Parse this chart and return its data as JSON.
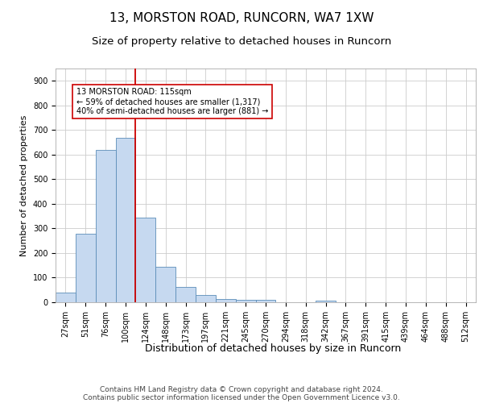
{
  "title1": "13, MORSTON ROAD, RUNCORN, WA7 1XW",
  "title2": "Size of property relative to detached houses in Runcorn",
  "xlabel": "Distribution of detached houses by size in Runcorn",
  "ylabel": "Number of detached properties",
  "categories": [
    "27sqm",
    "51sqm",
    "76sqm",
    "100sqm",
    "124sqm",
    "148sqm",
    "173sqm",
    "197sqm",
    "221sqm",
    "245sqm",
    "270sqm",
    "294sqm",
    "318sqm",
    "342sqm",
    "367sqm",
    "391sqm",
    "415sqm",
    "439sqm",
    "464sqm",
    "488sqm",
    "512sqm"
  ],
  "values": [
    40,
    278,
    620,
    667,
    345,
    145,
    63,
    28,
    13,
    10,
    10,
    0,
    0,
    8,
    0,
    0,
    0,
    0,
    0,
    0,
    0
  ],
  "bar_color": "#c6d9f0",
  "bar_edge_color": "#5b8db8",
  "vline_index": 3,
  "vline_color": "#cc0000",
  "annotation_text": "13 MORSTON ROAD: 115sqm\n← 59% of detached houses are smaller (1,317)\n40% of semi-detached houses are larger (881) →",
  "annotation_box_color": "#ffffff",
  "annotation_box_edge": "#cc0000",
  "ylim": [
    0,
    950
  ],
  "yticks": [
    0,
    100,
    200,
    300,
    400,
    500,
    600,
    700,
    800,
    900
  ],
  "grid_color": "#cccccc",
  "background_color": "#ffffff",
  "footer1": "Contains HM Land Registry data © Crown copyright and database right 2024.",
  "footer2": "Contains public sector information licensed under the Open Government Licence v3.0.",
  "title_fontsize": 11,
  "subtitle_fontsize": 9.5,
  "tick_fontsize": 7,
  "xlabel_fontsize": 9,
  "ylabel_fontsize": 8,
  "footer_fontsize": 6.5
}
